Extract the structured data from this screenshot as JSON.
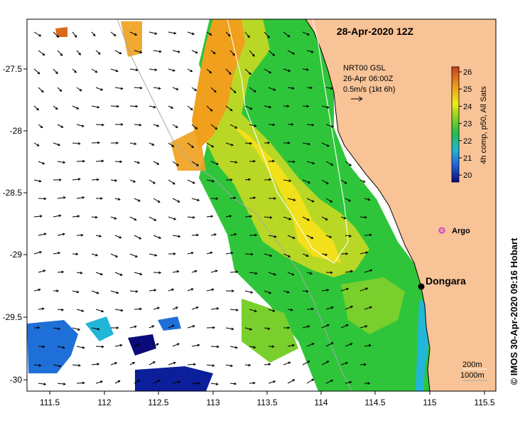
{
  "map": {
    "title": "28-Apr-2020 12Z",
    "x_ticks": [
      "111.5",
      "112",
      "112.5",
      "113",
      "113.5",
      "114",
      "114.5",
      "115",
      "115.5"
    ],
    "y_ticks": [
      "-27.5",
      "-28",
      "-28.5",
      "-29",
      "-29.5",
      "-30"
    ],
    "current_legend": {
      "line1": "NRT00 GSL",
      "line2": "26-Apr 06:00Z",
      "line3": "0.5m/s (1kt 6h)"
    },
    "colorbar": {
      "ticks": [
        "26",
        "25",
        "24",
        "23",
        "22",
        "21",
        "20"
      ],
      "label": "4h comp, p50, All Sats"
    },
    "places": {
      "argo": "Argo",
      "dongara": "Dongara"
    },
    "isobaths": {
      "label1": "200m",
      "label2": "1000m"
    },
    "credit": "© IMOS 30-Apr-2020 09:16 Hobart"
  },
  "colors": {
    "land": "#f7c397",
    "coast_line": "#000000",
    "isobath_200": "#ffffff",
    "isobath_1000": "#a8a8a8",
    "argo_marker": "#d23dd6",
    "dongara_marker": "#000000"
  }
}
